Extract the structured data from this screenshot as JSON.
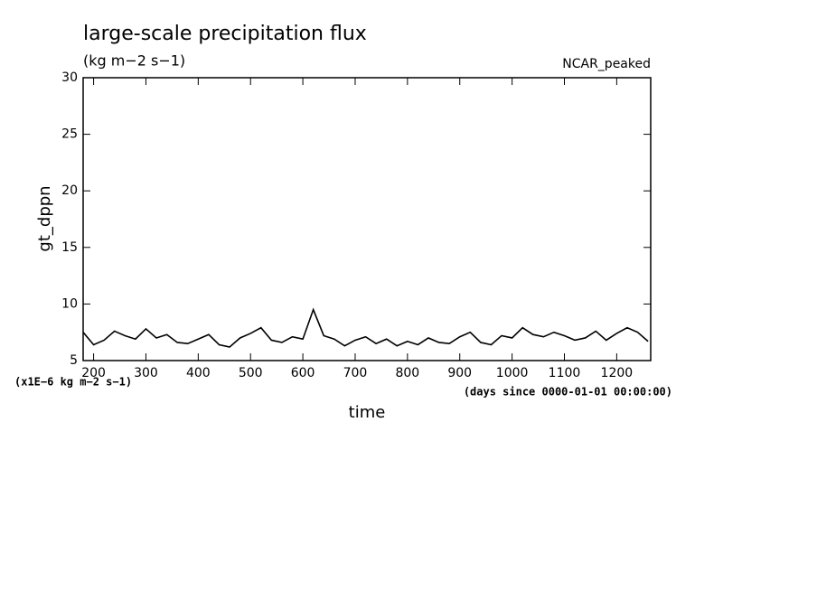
{
  "chart_data": {
    "type": "line",
    "title": "large-scale precipitation flux",
    "subtitle": "(kg m−2 s−1)",
    "annotation": "NCAR_peaked",
    "y_label": "gt_dppn",
    "x_label": "time",
    "y_unit_note": "(x1E−6 kg m−2 s−1)",
    "x_unit_note": "(days since 0000-01-01 00:00:00)",
    "x": [
      180,
      200,
      220,
      240,
      260,
      280,
      300,
      320,
      340,
      360,
      380,
      400,
      420,
      440,
      460,
      480,
      500,
      520,
      540,
      560,
      580,
      600,
      620,
      640,
      660,
      680,
      700,
      720,
      740,
      760,
      780,
      800,
      820,
      840,
      860,
      880,
      900,
      920,
      940,
      960,
      980,
      1000,
      1020,
      1040,
      1060,
      1080,
      1100,
      1120,
      1140,
      1160,
      1180,
      1200,
      1220,
      1240,
      1260
    ],
    "series": [
      {
        "name": "gt_dppn",
        "color": "#000000",
        "values": [
          7.5,
          6.4,
          6.8,
          7.6,
          7.2,
          6.9,
          7.8,
          7.0,
          7.3,
          6.6,
          6.5,
          6.9,
          7.3,
          6.4,
          6.2,
          7.0,
          7.4,
          7.9,
          6.8,
          6.6,
          7.1,
          6.9,
          9.5,
          7.2,
          6.9,
          6.3,
          6.8,
          7.1,
          6.5,
          6.9,
          6.3,
          6.7,
          6.4,
          7.0,
          6.6,
          6.5,
          7.1,
          7.5,
          6.6,
          6.4,
          7.2,
          7.0,
          7.9,
          7.3,
          7.1,
          7.5,
          7.2,
          6.8,
          7.0,
          7.6,
          6.8,
          7.4,
          7.9,
          7.5,
          6.7
        ]
      }
    ],
    "xlim": [
      180,
      1265
    ],
    "xticks": [
      200,
      300,
      400,
      500,
      600,
      700,
      800,
      900,
      1000,
      1100,
      1200
    ],
    "ylim": [
      5,
      30
    ],
    "yticks": [
      5,
      10,
      15,
      20,
      25,
      30
    ],
    "grid": false
  }
}
